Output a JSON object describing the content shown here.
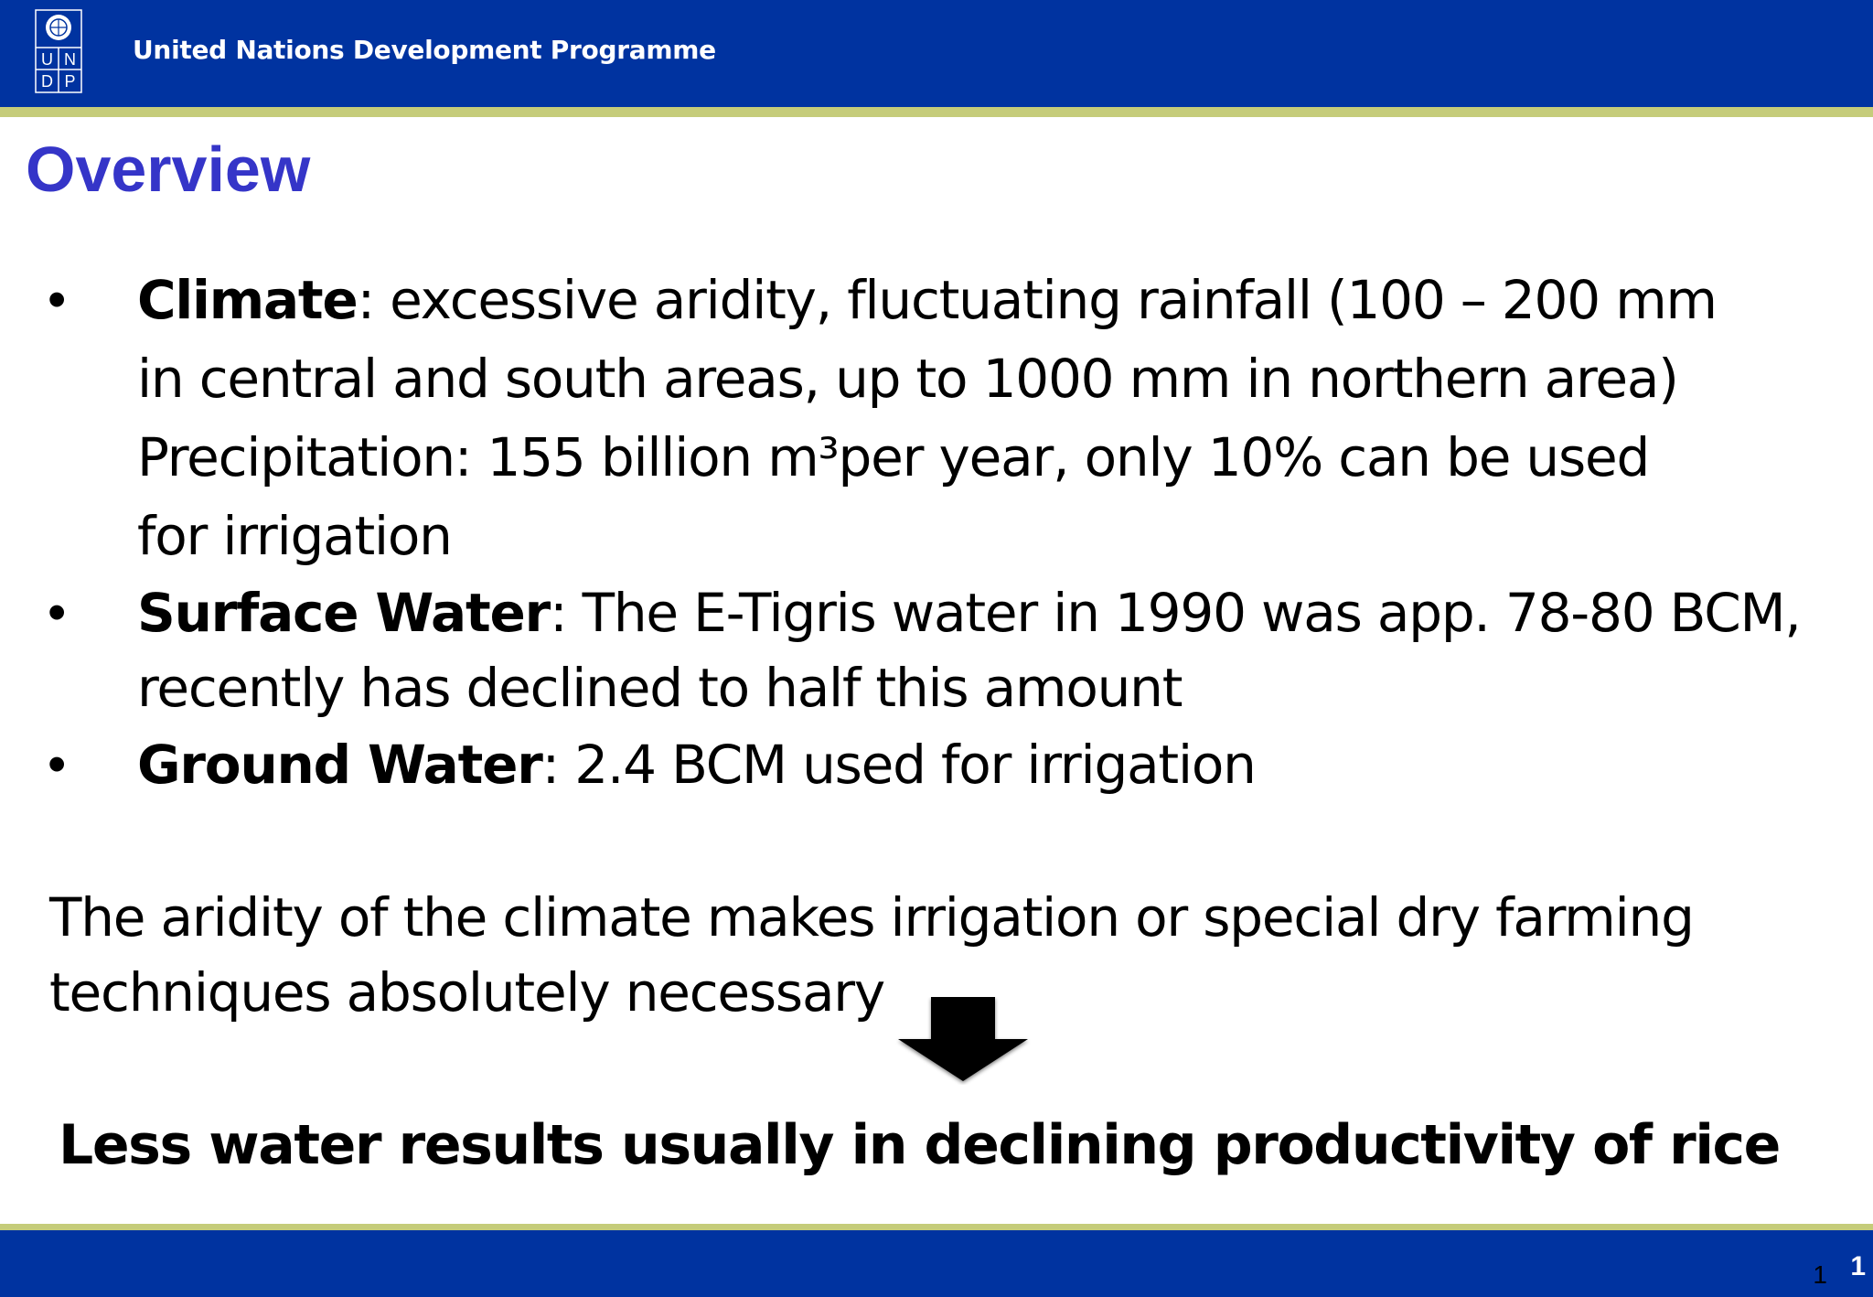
{
  "header": {
    "org_name": "United Nations Development Programme",
    "logo_letters": [
      "U",
      "N",
      "D",
      "P"
    ],
    "background_color": "#0033a0",
    "rule_color": "#c5cc7a"
  },
  "title": "Overview",
  "title_color": "#3535c8",
  "bullets": [
    {
      "label": "Climate",
      "lines": [
        ": excessive aridity, fluctuating rainfall (100 – 200 mm",
        "in central and south areas,  up to 1000 mm in northern area)",
        "Precipitation: 155 billion m³per year, only 10% can be used",
        "for irrigation"
      ]
    },
    {
      "label": "Surface Water",
      "lines": [
        ": The E-Tigris water in 1990 was app. 78-80 BCM,",
        "recently has declined to half this amount"
      ]
    },
    {
      "label": "Ground Water",
      "lines": [
        ": 2.4 BCM used for irrigation"
      ]
    }
  ],
  "bullet_glyph": "•",
  "paragraph": {
    "lines": [
      "The aridity of the climate makes irrigation or special dry farming",
      "techniques absolutely necessary"
    ]
  },
  "arrow_icon": "down-arrow-icon",
  "conclusion": "Less water results usually in declining productivity of rice",
  "footer": {
    "slide_number_inner": "1",
    "slide_number_outer": "1"
  }
}
